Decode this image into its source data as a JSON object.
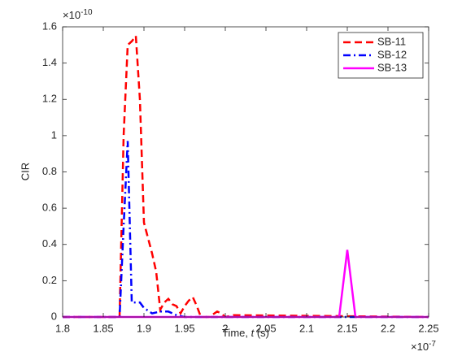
{
  "chart_data": {
    "type": "line",
    "xlabel": {
      "text": "Time, ",
      "var": "t",
      "unit": " (s)"
    },
    "ylabel": "CIR",
    "x_multiplier": {
      "base": "×10",
      "exponent": "-7"
    },
    "y_multiplier": {
      "base": "×10",
      "exponent": "-10"
    },
    "xlim": [
      1.8,
      2.25
    ],
    "ylim": [
      0,
      1.6
    ],
    "xticks": [
      1.8,
      1.85,
      1.9,
      1.95,
      2,
      2.05,
      2.1,
      2.15,
      2.2,
      2.25
    ],
    "yticks": [
      0,
      0.2,
      0.4,
      0.6,
      0.8,
      1,
      1.2,
      1.4,
      1.6
    ],
    "grid": false,
    "legend": "upper right",
    "series": [
      {
        "name": "SB-11",
        "color": "#ff0000",
        "linestyle": "dashed",
        "x": [
          1.8,
          1.87,
          1.875,
          1.88,
          1.885,
          1.89,
          1.895,
          1.9,
          1.91,
          1.915,
          1.92,
          1.925,
          1.93,
          1.935,
          1.94,
          1.945,
          1.95,
          1.955,
          1.96,
          1.965,
          1.97,
          1.98,
          1.99,
          1.995,
          2.0,
          2.01,
          2.25
        ],
        "values": [
          0,
          0,
          1.0,
          1.5,
          1.52,
          1.55,
          1.2,
          0.52,
          0.35,
          0.25,
          0.04,
          0.08,
          0.1,
          0.07,
          0.06,
          0.02,
          0.06,
          0.09,
          0.11,
          0.06,
          0,
          0,
          0.03,
          0.02,
          0,
          0.01,
          0
        ]
      },
      {
        "name": "SB-12",
        "color": "#0000ff",
        "linestyle": "dashdot",
        "x": [
          1.8,
          1.87,
          1.875,
          1.88,
          1.885,
          1.895,
          1.9,
          1.91,
          1.92,
          1.93,
          1.94,
          1.95,
          2.25
        ],
        "values": [
          0,
          0,
          0.5,
          0.97,
          0.08,
          0.08,
          0.05,
          0.02,
          0.03,
          0.03,
          0.01,
          0,
          0
        ]
      },
      {
        "name": "SB-13",
        "color": "#ff00ff",
        "linestyle": "solid",
        "x": [
          1.8,
          2.14,
          2.15,
          2.16,
          2.25
        ],
        "values": [
          0,
          0,
          0.37,
          0,
          0
        ]
      }
    ]
  }
}
